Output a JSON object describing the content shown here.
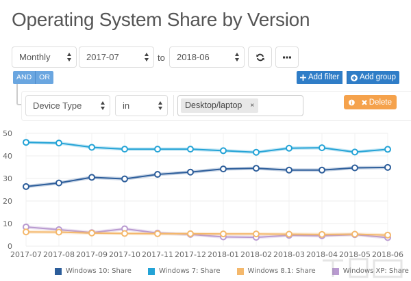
{
  "page": {
    "title": "Operating System Share by Version"
  },
  "controls": {
    "interval": "Monthly",
    "start_month": "2017-07",
    "to_label": "to",
    "end_month": "2018-06",
    "refresh_icon": "refresh-icon",
    "more_icon": "ellipsis-icon"
  },
  "filter_group": {
    "logic": {
      "and_label": "AND",
      "or_label": "OR",
      "active": "AND"
    },
    "add_filter_label": "Add filter",
    "add_group_label": "Add group",
    "rule": {
      "field": "Device Type",
      "operator": "in",
      "values": [
        "Desktop/laptop"
      ],
      "delete_label": "Delete"
    }
  },
  "colors": {
    "win10": "#2c5d9a",
    "win7": "#23a3d6",
    "win81": "#f4b86c",
    "winxp": "#b99ad0",
    "primary_button": "#2f7dc7",
    "delete_button": "#f5a24c",
    "logic_button": "#6aa6e0"
  },
  "chart_data": {
    "type": "line",
    "title": "Operating System Share by Version",
    "xlabel": "",
    "ylabel": "",
    "ylim": [
      0,
      50
    ],
    "yticks": [
      0,
      10,
      20,
      30,
      40,
      50
    ],
    "grid": true,
    "legend_position": "bottom",
    "categories": [
      "2017-07",
      "2017-08",
      "2017-09",
      "2017-10",
      "2017-11",
      "2017-12",
      "2018-01",
      "2018-02",
      "2018-03",
      "2018-04",
      "2018-05",
      "2018-06"
    ],
    "series": [
      {
        "name": "Windows 10: Share",
        "color": "#2c5d9a",
        "values": [
          26.4,
          28.0,
          30.5,
          29.8,
          31.8,
          32.8,
          34.2,
          34.5,
          33.7,
          33.7,
          34.7,
          34.9
        ]
      },
      {
        "name": "Windows 7: Share",
        "color": "#23a3d6",
        "values": [
          46.0,
          45.7,
          43.8,
          43.0,
          43.0,
          43.0,
          42.3,
          41.6,
          43.4,
          43.6,
          41.7,
          42.9
        ]
      },
      {
        "name": "Windows 8.1: Share",
        "color": "#f4b86c",
        "values": [
          6.3,
          6.2,
          5.8,
          5.6,
          5.5,
          5.5,
          5.4,
          5.4,
          5.3,
          5.2,
          5.3,
          4.9
        ]
      },
      {
        "name": "Windows XP: Share",
        "color": "#b99ad0",
        "values": [
          8.5,
          7.3,
          6.0,
          7.7,
          5.8,
          5.2,
          4.1,
          3.9,
          4.8,
          4.6,
          5.1,
          3.8
        ]
      }
    ]
  }
}
